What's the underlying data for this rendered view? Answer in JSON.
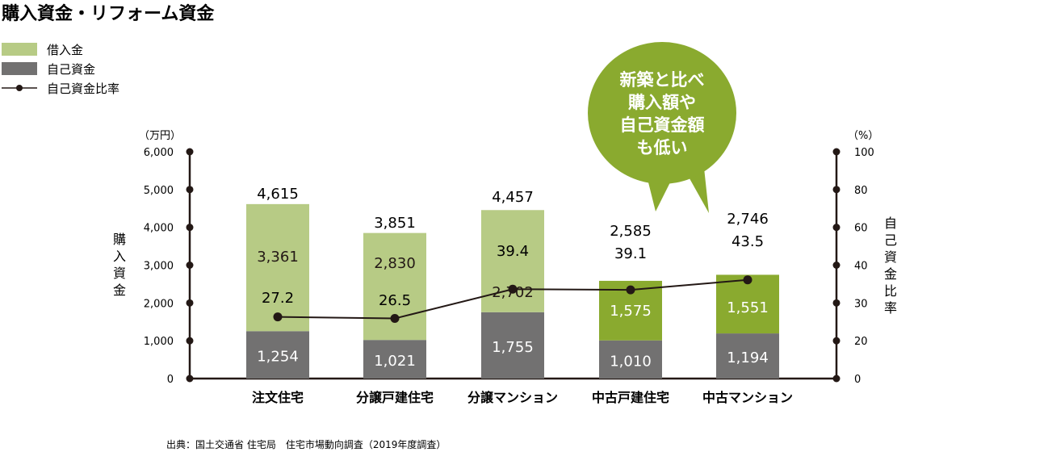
{
  "title": "購入資金・リフォーム資金",
  "legend": [
    {
      "label": "借入金",
      "color": "#b7cb85"
    },
    {
      "label": "自己資金",
      "color": "#727171"
    },
    {
      "label": "自己資金比率",
      "color": "#231815"
    }
  ],
  "left_axis": {
    "unit": "（万円）",
    "title": "購入資金",
    "ticks": [
      "6,000",
      "5,000",
      "4,000",
      "3,000",
      "2,000",
      "1,000",
      "0"
    ]
  },
  "right_axis": {
    "unit": "（%）",
    "title": "自己資金比率",
    "ticks": [
      "100",
      "80",
      "60",
      "40",
      "30",
      "20",
      "0"
    ]
  },
  "bubble": {
    "lines": [
      "新築と比べ",
      "購入額や",
      "自己資金額",
      "も低い"
    ],
    "color": "#8aaa2f"
  },
  "source": "出典：国土交通省 住宅局　住宅市場動向調査（2019年度調査）",
  "chart_data": {
    "type": "bar",
    "stacked": true,
    "categories": [
      "注文住宅",
      "分譲戸建住宅",
      "分譲マンション",
      "中古戸建住宅",
      "中古マンション"
    ],
    "ylim": [
      0,
      6000
    ],
    "y2lim": [
      0,
      100
    ],
    "series": [
      {
        "name": "自己資金",
        "values": [
          1254,
          1021,
          1755,
          1010,
          1194
        ],
        "labels": [
          "1,254",
          "1,021",
          "1,755",
          "1,010",
          "1,194"
        ],
        "color": "#727171"
      },
      {
        "name": "借入金",
        "values": [
          3361,
          2830,
          2702,
          1575,
          1551
        ],
        "labels": [
          "3,361",
          "2,830",
          "2,702",
          "1,575",
          "1,551"
        ],
        "colors": [
          "#b7cb85",
          "#b7cb85",
          "#b7cb85",
          "#8aaa2f",
          "#8aaa2f"
        ]
      },
      {
        "name": "自己資金比率",
        "type": "line",
        "axis": "right",
        "values": [
          27.2,
          26.5,
          39.4,
          39.1,
          43.5
        ],
        "labels": [
          "27.2",
          "26.5",
          "39.4",
          "39.1",
          "43.5"
        ],
        "color": "#231815"
      }
    ],
    "totals": [
      "4,615",
      "3,851",
      "4,457",
      "2,585",
      "2,746"
    ]
  }
}
